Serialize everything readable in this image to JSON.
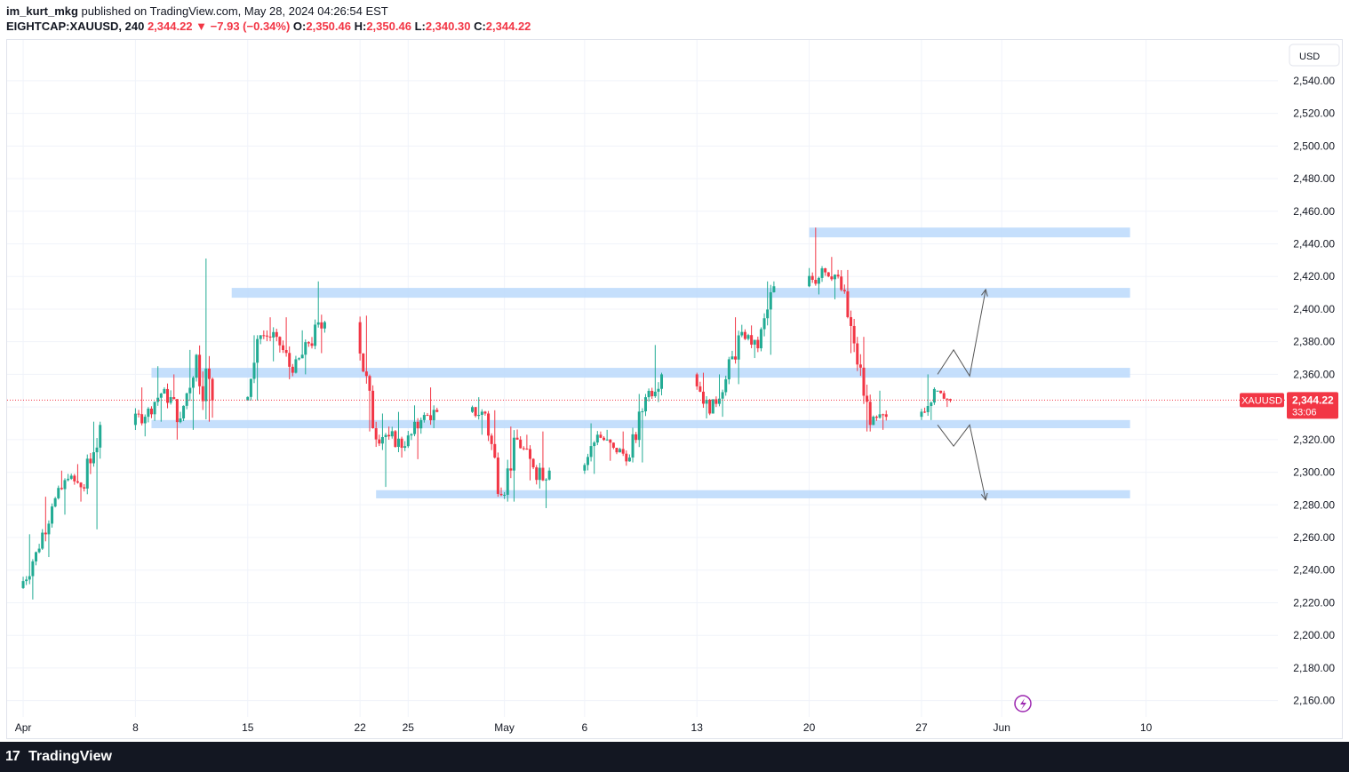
{
  "header": {
    "author": "im_kurt_mkg",
    "published": "published on TradingView.com, May 28, 2024 04:26:54 EST",
    "symbol": "EIGHTCAP:XAUUSD, 240",
    "last": "2,344.22",
    "change_arrow": "▼",
    "change": "−7.93 (−0.34%)",
    "o_label": "O:",
    "o": "2,350.46",
    "h_label": "H:",
    "h": "2,350.46",
    "l_label": "L:",
    "l": "2,340.30",
    "c_label": "C:",
    "c": "2,344.22"
  },
  "footer": {
    "logo_text": "TradingView",
    "logo_mark": "17"
  },
  "currency_button": "USD",
  "colors": {
    "up": "#22ab94",
    "down": "#f23645",
    "zone": "#bbd9fb",
    "grid": "#f0f3fa",
    "price_line": "#f23645",
    "arrow": "#555555"
  },
  "chart_data": {
    "type": "candlestick",
    "symbol": "EIGHTCAP:XAUUSD",
    "interval": "240",
    "y_axis": {
      "range": [
        2150,
        2565
      ],
      "ticks": [
        "2,160.00",
        "2,180.00",
        "2,200.00",
        "2,220.00",
        "2,240.00",
        "2,260.00",
        "2,280.00",
        "2,300.00",
        "2,320.00",
        "2,340.00",
        "2,360.00",
        "2,380.00",
        "2,400.00",
        "2,420.00",
        "2,440.00",
        "2,460.00",
        "2,480.00",
        "2,500.00",
        "2,520.00",
        "2,540.00"
      ],
      "tick_values": [
        2160,
        2180,
        2200,
        2220,
        2240,
        2260,
        2280,
        2300,
        2320,
        2340,
        2360,
        2380,
        2400,
        2420,
        2440,
        2460,
        2480,
        2500,
        2520,
        2540
      ]
    },
    "x_axis": {
      "labels": [
        "Apr",
        "8",
        "15",
        "22",
        "25",
        "May",
        "6",
        "13",
        "20",
        "27",
        "Jun",
        "10"
      ],
      "label_dates": [
        "2024-04-01",
        "2024-04-08",
        "2024-04-15",
        "2024-04-22",
        "2024-04-25",
        "2024-05-01",
        "2024-05-06",
        "2024-05-13",
        "2024-05-20",
        "2024-05-27",
        "2024-06-01",
        "2024-06-10"
      ],
      "range": [
        "2024-03-31",
        "2024-06-16"
      ]
    },
    "grid": true,
    "last_price": {
      "label": "XAUUSD",
      "value": 2344.22,
      "text": "2,344.22",
      "countdown": "33:06"
    },
    "zones": [
      {
        "start": "2024-05-20",
        "end": "2024-06-09",
        "low": 2444,
        "high": 2450
      },
      {
        "start": "2024-04-14",
        "end": "2024-06-09",
        "low": 2407,
        "high": 2413
      },
      {
        "start": "2024-04-09",
        "end": "2024-06-09",
        "low": 2358,
        "high": 2364
      },
      {
        "start": "2024-04-09",
        "end": "2024-06-09",
        "low": 2327,
        "high": 2332
      },
      {
        "start": "2024-04-23",
        "end": "2024-06-09",
        "low": 2284,
        "high": 2289
      }
    ],
    "projection_up": [
      [
        "2024-05-28",
        2360
      ],
      [
        "2024-05-29",
        2375
      ],
      [
        "2024-05-30",
        2359
      ],
      [
        "2024-05-31",
        2412
      ]
    ],
    "projection_down": [
      [
        "2024-05-28",
        2329
      ],
      [
        "2024-05-29",
        2316
      ],
      [
        "2024-05-30",
        2329
      ],
      [
        "2024-05-31",
        2283
      ]
    ],
    "candles": [
      [
        "2024-04-01",
        2229,
        2262,
        2222,
        2251
      ],
      [
        "2024-04-02",
        2251,
        2285,
        2248,
        2279
      ],
      [
        "2024-04-03",
        2279,
        2301,
        2274,
        2296
      ],
      [
        "2024-04-04",
        2296,
        2305,
        2282,
        2290
      ],
      [
        "2024-04-05",
        2290,
        2331,
        2265,
        2329
      ],
      [
        "2024-04-08",
        2329,
        2352,
        2322,
        2339
      ],
      [
        "2024-04-09",
        2339,
        2365,
        2331,
        2351
      ],
      [
        "2024-04-10",
        2351,
        2360,
        2320,
        2333
      ],
      [
        "2024-04-11",
        2333,
        2375,
        2326,
        2372
      ],
      [
        "2024-04-12",
        2372,
        2431,
        2331,
        2344
      ],
      [
        "2024-04-15",
        2344,
        2384,
        2344,
        2384
      ],
      [
        "2024-04-16",
        2384,
        2395,
        2368,
        2383
      ],
      [
        "2024-04-17",
        2383,
        2395,
        2357,
        2361
      ],
      [
        "2024-04-18",
        2361,
        2387,
        2360,
        2379
      ],
      [
        "2024-04-19",
        2379,
        2417,
        2373,
        2392
      ],
      [
        "2024-04-22",
        2392,
        2396,
        2325,
        2327
      ],
      [
        "2024-04-23",
        2327,
        2336,
        2291,
        2322
      ],
      [
        "2024-04-24",
        2322,
        2337,
        2309,
        2316
      ],
      [
        "2024-04-25",
        2316,
        2341,
        2308,
        2332
      ],
      [
        "2024-04-26",
        2332,
        2352,
        2327,
        2337
      ],
      [
        "2024-04-29",
        2337,
        2346,
        2323,
        2336
      ],
      [
        "2024-04-30",
        2336,
        2338,
        2285,
        2286
      ],
      [
        "2024-05-01",
        2286,
        2328,
        2282,
        2320
      ],
      [
        "2024-05-02",
        2320,
        2323,
        2295,
        2303
      ],
      [
        "2024-05-03",
        2303,
        2325,
        2278,
        2301
      ],
      [
        "2024-05-06",
        2301,
        2330,
        2299,
        2323
      ],
      [
        "2024-05-07",
        2323,
        2326,
        2307,
        2315
      ],
      [
        "2024-05-08",
        2315,
        2325,
        2304,
        2309
      ],
      [
        "2024-05-09",
        2309,
        2348,
        2306,
        2346
      ],
      [
        "2024-05-10",
        2346,
        2378,
        2343,
        2360
      ],
      [
        "2024-05-13",
        2360,
        2361,
        2333,
        2336
      ],
      [
        "2024-05-14",
        2336,
        2360,
        2334,
        2357
      ],
      [
        "2024-05-15",
        2357,
        2395,
        2354,
        2386
      ],
      [
        "2024-05-16",
        2386,
        2390,
        2370,
        2376
      ],
      [
        "2024-05-17",
        2376,
        2417,
        2372,
        2414
      ],
      [
        "2024-05-20",
        2414,
        2450,
        2409,
        2425
      ],
      [
        "2024-05-21",
        2425,
        2432,
        2406,
        2420
      ],
      [
        "2024-05-22",
        2420,
        2424,
        2373,
        2379
      ],
      [
        "2024-05-23",
        2379,
        2383,
        2325,
        2329
      ],
      [
        "2024-05-24",
        2329,
        2350,
        2326,
        2334
      ],
      [
        "2024-05-27",
        2334,
        2360,
        2332,
        2351
      ],
      [
        "2024-05-28",
        2350,
        2350,
        2340,
        2344
      ]
    ]
  }
}
